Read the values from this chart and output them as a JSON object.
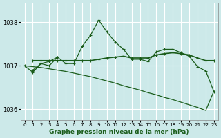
{
  "xlabel": "Graphe pression niveau de la mer (hPa)",
  "ylim": [
    1035.75,
    1038.45
  ],
  "xlim": [
    -0.5,
    23.5
  ],
  "yticks": [
    1036,
    1037,
    1038
  ],
  "xticks": [
    0,
    1,
    2,
    3,
    4,
    5,
    6,
    7,
    8,
    9,
    10,
    11,
    12,
    13,
    14,
    15,
    16,
    17,
    18,
    19,
    20,
    21,
    22,
    23
  ],
  "bg_color": "#cce9e9",
  "grid_color": "#aad4d4",
  "line_color": "#1a5c1a",
  "series_peak": {
    "x": [
      1,
      2,
      3,
      4,
      5,
      6,
      7,
      8,
      9,
      10,
      11,
      12,
      13,
      14,
      15,
      16,
      17,
      18,
      19,
      20,
      21,
      22,
      23
    ],
    "y": [
      1036.9,
      1037.05,
      1037.1,
      1037.2,
      1037.05,
      1037.05,
      1037.45,
      1037.7,
      1038.05,
      1037.78,
      1037.55,
      1037.38,
      1037.15,
      1037.15,
      1037.1,
      1037.32,
      1037.38,
      1037.38,
      1037.3,
      1037.22,
      1036.98,
      1036.88,
      1036.4
    ]
  },
  "series_flat": {
    "x": [
      1,
      2,
      3,
      4,
      5,
      6,
      7,
      8,
      9,
      10,
      11,
      12,
      13,
      14,
      15,
      16,
      17,
      18,
      19,
      20,
      21,
      22,
      23
    ],
    "y": [
      1037.12,
      1037.12,
      1037.12,
      1037.12,
      1037.12,
      1037.12,
      1037.12,
      1037.12,
      1037.15,
      1037.18,
      1037.2,
      1037.22,
      1037.18,
      1037.18,
      1037.18,
      1037.25,
      1037.28,
      1037.3,
      1037.28,
      1037.25,
      1037.18,
      1037.12,
      1037.12
    ]
  },
  "series_decline": {
    "x": [
      0,
      1,
      2,
      3,
      4,
      5,
      6,
      7,
      8,
      9,
      10,
      11,
      12,
      13,
      14,
      15,
      16,
      17,
      18,
      19,
      20,
      21,
      22,
      23
    ],
    "y": [
      1037.0,
      1036.98,
      1036.96,
      1036.93,
      1036.9,
      1036.87,
      1036.83,
      1036.79,
      1036.75,
      1036.7,
      1036.65,
      1036.6,
      1036.54,
      1036.49,
      1036.44,
      1036.38,
      1036.33,
      1036.27,
      1036.22,
      1036.16,
      1036.1,
      1036.04,
      1035.97,
      1036.42
    ]
  },
  "series_zigzag": {
    "x": [
      0,
      1,
      2,
      3,
      4
    ],
    "y": [
      1037.0,
      1036.85,
      1037.05,
      1037.0,
      1037.2
    ]
  }
}
